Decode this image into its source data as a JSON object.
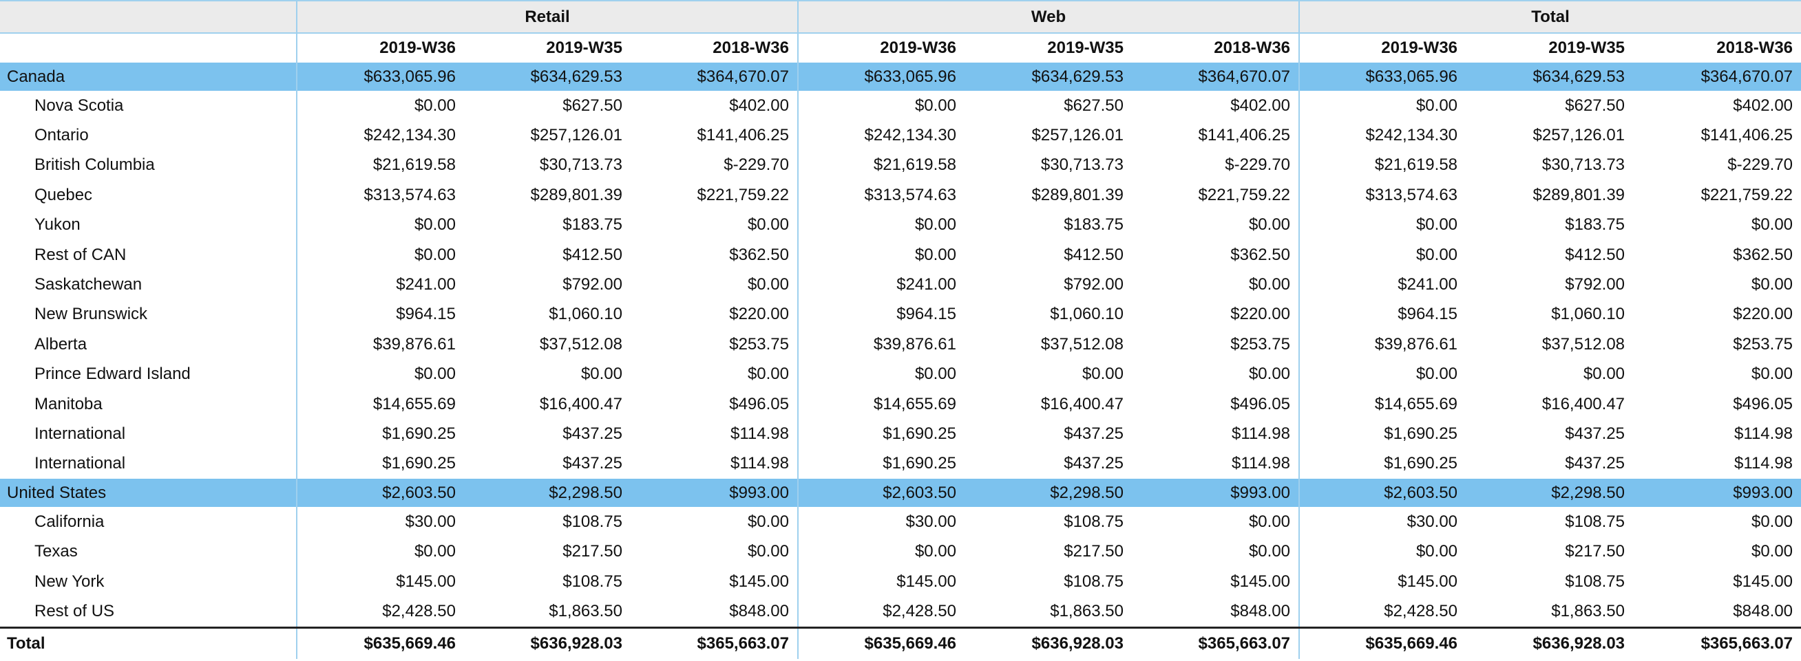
{
  "table": {
    "groups": [
      "Retail",
      "Web",
      "Total"
    ],
    "periods": [
      "2019-W36",
      "2019-W35",
      "2018-W36"
    ],
    "sections": [
      {
        "name": "Canada",
        "values": [
          "$633,065.96",
          "$634,629.53",
          "$364,670.07",
          "$633,065.96",
          "$634,629.53",
          "$364,670.07",
          "$633,065.96",
          "$634,629.53",
          "$364,670.07"
        ],
        "rows": [
          {
            "name": "Nova Scotia",
            "values": [
              "$0.00",
              "$627.50",
              "$402.00",
              "$0.00",
              "$627.50",
              "$402.00",
              "$0.00",
              "$627.50",
              "$402.00"
            ]
          },
          {
            "name": "Ontario",
            "values": [
              "$242,134.30",
              "$257,126.01",
              "$141,406.25",
              "$242,134.30",
              "$257,126.01",
              "$141,406.25",
              "$242,134.30",
              "$257,126.01",
              "$141,406.25"
            ]
          },
          {
            "name": "British Columbia",
            "values": [
              "$21,619.58",
              "$30,713.73",
              "$-229.70",
              "$21,619.58",
              "$30,713.73",
              "$-229.70",
              "$21,619.58",
              "$30,713.73",
              "$-229.70"
            ]
          },
          {
            "name": "Quebec",
            "values": [
              "$313,574.63",
              "$289,801.39",
              "$221,759.22",
              "$313,574.63",
              "$289,801.39",
              "$221,759.22",
              "$313,574.63",
              "$289,801.39",
              "$221,759.22"
            ]
          },
          {
            "name": "Yukon",
            "values": [
              "$0.00",
              "$183.75",
              "$0.00",
              "$0.00",
              "$183.75",
              "$0.00",
              "$0.00",
              "$183.75",
              "$0.00"
            ]
          },
          {
            "name": "Rest of CAN",
            "values": [
              "$0.00",
              "$412.50",
              "$362.50",
              "$0.00",
              "$412.50",
              "$362.50",
              "$0.00",
              "$412.50",
              "$362.50"
            ]
          },
          {
            "name": "Saskatchewan",
            "values": [
              "$241.00",
              "$792.00",
              "$0.00",
              "$241.00",
              "$792.00",
              "$0.00",
              "$241.00",
              "$792.00",
              "$0.00"
            ]
          },
          {
            "name": "New Brunswick",
            "values": [
              "$964.15",
              "$1,060.10",
              "$220.00",
              "$964.15",
              "$1,060.10",
              "$220.00",
              "$964.15",
              "$1,060.10",
              "$220.00"
            ]
          },
          {
            "name": "Alberta",
            "values": [
              "$39,876.61",
              "$37,512.08",
              "$253.75",
              "$39,876.61",
              "$37,512.08",
              "$253.75",
              "$39,876.61",
              "$37,512.08",
              "$253.75"
            ]
          },
          {
            "name": "Prince Edward Island",
            "values": [
              "$0.00",
              "$0.00",
              "$0.00",
              "$0.00",
              "$0.00",
              "$0.00",
              "$0.00",
              "$0.00",
              "$0.00"
            ]
          },
          {
            "name": "Manitoba",
            "values": [
              "$14,655.69",
              "$16,400.47",
              "$496.05",
              "$14,655.69",
              "$16,400.47",
              "$496.05",
              "$14,655.69",
              "$16,400.47",
              "$496.05"
            ]
          },
          {
            "name": "International",
            "values": [
              "$1,690.25",
              "$437.25",
              "$114.98",
              "$1,690.25",
              "$437.25",
              "$114.98",
              "$1,690.25",
              "$437.25",
              "$114.98"
            ]
          },
          {
            "name": "International",
            "values": [
              "$1,690.25",
              "$437.25",
              "$114.98",
              "$1,690.25",
              "$437.25",
              "$114.98",
              "$1,690.25",
              "$437.25",
              "$114.98"
            ]
          }
        ]
      },
      {
        "name": "United States",
        "values": [
          "$2,603.50",
          "$2,298.50",
          "$993.00",
          "$2,603.50",
          "$2,298.50",
          "$993.00",
          "$2,603.50",
          "$2,298.50",
          "$993.00"
        ],
        "rows": [
          {
            "name": "California",
            "values": [
              "$30.00",
              "$108.75",
              "$0.00",
              "$30.00",
              "$108.75",
              "$0.00",
              "$30.00",
              "$108.75",
              "$0.00"
            ]
          },
          {
            "name": "Texas",
            "values": [
              "$0.00",
              "$217.50",
              "$0.00",
              "$0.00",
              "$217.50",
              "$0.00",
              "$0.00",
              "$217.50",
              "$0.00"
            ]
          },
          {
            "name": "New York",
            "values": [
              "$145.00",
              "$108.75",
              "$145.00",
              "$145.00",
              "$108.75",
              "$145.00",
              "$145.00",
              "$108.75",
              "$145.00"
            ]
          },
          {
            "name": "Rest of US",
            "values": [
              "$2,428.50",
              "$1,863.50",
              "$848.00",
              "$2,428.50",
              "$1,863.50",
              "$848.00",
              "$2,428.50",
              "$1,863.50",
              "$848.00"
            ]
          }
        ]
      }
    ],
    "total": {
      "label": "Total",
      "values": [
        "$635,669.46",
        "$636,928.03",
        "$365,663.07",
        "$635,669.46",
        "$636,928.03",
        "$365,663.07",
        "$635,669.46",
        "$636,928.03",
        "$365,663.07"
      ]
    }
  },
  "colors": {
    "header_bg": "#ebebeb",
    "country_row_bg": "#7cc2ee",
    "divider": "#9fd0ee",
    "total_rule": "#222222"
  }
}
